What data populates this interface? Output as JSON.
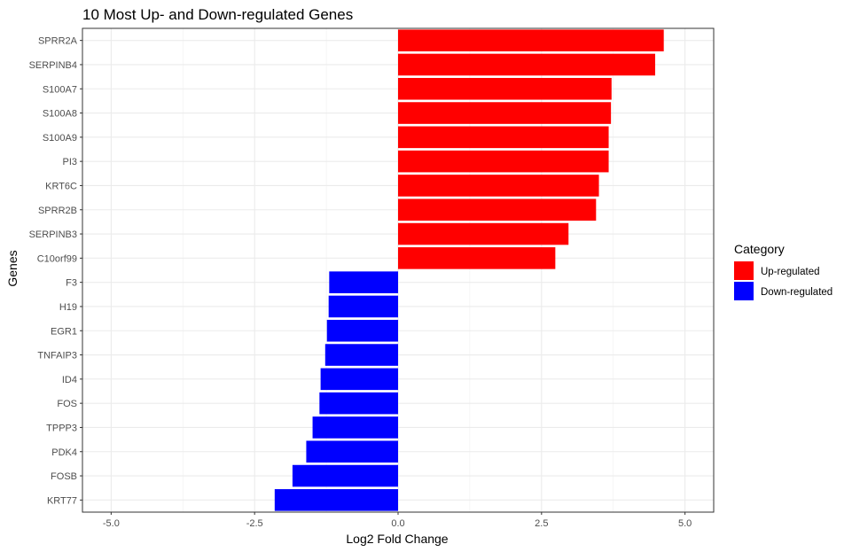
{
  "chart_data": {
    "type": "bar",
    "orientation": "horizontal",
    "title": "10 Most Up- and Down-regulated Genes",
    "xlabel": "Log2 Fold Change",
    "ylabel": "Genes",
    "xlim": [
      -5.5,
      5.5
    ],
    "x_ticks": [
      {
        "value": -5.0,
        "label": "-5.0"
      },
      {
        "value": -2.5,
        "label": "-2.5"
      },
      {
        "value": 0.0,
        "label": "0.0"
      },
      {
        "value": 2.5,
        "label": "2.5"
      },
      {
        "value": 5.0,
        "label": "5.0"
      }
    ],
    "grid": true,
    "legend": {
      "title": "Category",
      "position": "right",
      "entries": [
        {
          "label": "Up-regulated",
          "color": "#ff0000"
        },
        {
          "label": "Down-regulated",
          "color": "#0000ff"
        }
      ]
    },
    "categories": [
      "SPRR2A",
      "SERPINB4",
      "S100A7",
      "S100A8",
      "S100A9",
      "PI3",
      "KRT6C",
      "SPRR2B",
      "SERPINB3",
      "C10orf99",
      "F3",
      "H19",
      "EGR1",
      "TNFAIP3",
      "ID4",
      "FOS",
      "TPPP3",
      "PDK4",
      "FOSB",
      "KRT77"
    ],
    "series": [
      {
        "name": "Up-regulated",
        "color": "#ff0000",
        "values": [
          4.63,
          4.48,
          3.72,
          3.71,
          3.67,
          3.67,
          3.5,
          3.45,
          2.97,
          2.74,
          null,
          null,
          null,
          null,
          null,
          null,
          null,
          null,
          null,
          null
        ]
      },
      {
        "name": "Down-regulated",
        "color": "#0000ff",
        "values": [
          null,
          null,
          null,
          null,
          null,
          null,
          null,
          null,
          null,
          null,
          -1.2,
          -1.21,
          -1.24,
          -1.27,
          -1.35,
          -1.37,
          -1.49,
          -1.6,
          -1.84,
          -2.15
        ]
      }
    ]
  }
}
